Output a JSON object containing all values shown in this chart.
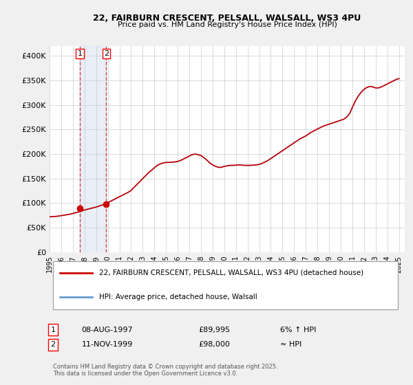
{
  "title_line1": "22, FAIRBURN CRESCENT, PELSALL, WALSALL, WS3 4PU",
  "title_line2": "Price paid vs. HM Land Registry's House Price Index (HPI)",
  "ylabel": "",
  "xlim_start": 1995.0,
  "xlim_end": 2025.5,
  "ylim_min": 0,
  "ylim_max": 420000,
  "yticks": [
    0,
    50000,
    100000,
    150000,
    200000,
    250000,
    300000,
    350000,
    400000
  ],
  "ytick_labels": [
    "£0",
    "£50K",
    "£100K",
    "£150K",
    "£200K",
    "£250K",
    "£300K",
    "£350K",
    "£400K"
  ],
  "xtick_years": [
    1995,
    1996,
    1997,
    1998,
    1999,
    2000,
    2001,
    2002,
    2003,
    2004,
    2005,
    2006,
    2007,
    2008,
    2009,
    2010,
    2011,
    2012,
    2013,
    2014,
    2015,
    2016,
    2017,
    2018,
    2019,
    2020,
    2021,
    2022,
    2023,
    2024,
    2025
  ],
  "hpi_color": "#6699cc",
  "price_color": "#cc0000",
  "background_color": "#f0f0f0",
  "plot_bg_color": "#ffffff",
  "grid_color": "#cccccc",
  "purchase1_year": 1997.6,
  "purchase1_price": 89995,
  "purchase2_year": 1999.87,
  "purchase2_price": 98000,
  "legend_label1": "22, FAIRBURN CRESCENT, PELSALL, WALSALL, WS3 4PU (detached house)",
  "legend_label2": "HPI: Average price, detached house, Walsall",
  "table_row1": [
    "1",
    "08-AUG-1997",
    "£89,995",
    "6% ↑ HPI"
  ],
  "table_row2": [
    "2",
    "11-NOV-1999",
    "£98,000",
    "≈ HPI"
  ],
  "footnote": "Contains HM Land Registry data © Crown copyright and database right 2025.\nThis data is licensed under the Open Government Licence v3.0.",
  "hpi_data_x": [
    1995.0,
    1995.25,
    1995.5,
    1995.75,
    1996.0,
    1996.25,
    1996.5,
    1996.75,
    1997.0,
    1997.25,
    1997.5,
    1997.75,
    1998.0,
    1998.25,
    1998.5,
    1998.75,
    1999.0,
    1999.25,
    1999.5,
    1999.75,
    2000.0,
    2000.25,
    2000.5,
    2000.75,
    2001.0,
    2001.25,
    2001.5,
    2001.75,
    2002.0,
    2002.25,
    2002.5,
    2002.75,
    2003.0,
    2003.25,
    2003.5,
    2003.75,
    2004.0,
    2004.25,
    2004.5,
    2004.75,
    2005.0,
    2005.25,
    2005.5,
    2005.75,
    2006.0,
    2006.25,
    2006.5,
    2006.75,
    2007.0,
    2007.25,
    2007.5,
    2007.75,
    2008.0,
    2008.25,
    2008.5,
    2008.75,
    2009.0,
    2009.25,
    2009.5,
    2009.75,
    2010.0,
    2010.25,
    2010.5,
    2010.75,
    2011.0,
    2011.25,
    2011.5,
    2011.75,
    2012.0,
    2012.25,
    2012.5,
    2012.75,
    2013.0,
    2013.25,
    2013.5,
    2013.75,
    2014.0,
    2014.25,
    2014.5,
    2014.75,
    2015.0,
    2015.25,
    2015.5,
    2015.75,
    2016.0,
    2016.25,
    2016.5,
    2016.75,
    2017.0,
    2017.25,
    2017.5,
    2017.75,
    2018.0,
    2018.25,
    2018.5,
    2018.75,
    2019.0,
    2019.25,
    2019.5,
    2019.75,
    2020.0,
    2020.25,
    2020.5,
    2020.75,
    2021.0,
    2021.25,
    2021.5,
    2021.75,
    2022.0,
    2022.25,
    2022.5,
    2022.75,
    2023.0,
    2023.25,
    2023.5,
    2023.75,
    2024.0,
    2024.25,
    2024.5,
    2024.75,
    2025.0
  ],
  "hpi_data_y": [
    72000,
    72500,
    73000,
    73500,
    74500,
    75500,
    76500,
    77500,
    79000,
    80500,
    82000,
    84000,
    86000,
    87500,
    89000,
    90500,
    92000,
    94000,
    96000,
    98000,
    101000,
    104000,
    107000,
    110000,
    113000,
    116000,
    119000,
    122000,
    126000,
    132000,
    138000,
    144000,
    150000,
    156000,
    162000,
    167000,
    172000,
    177000,
    180000,
    182000,
    183000,
    183000,
    183500,
    184000,
    185000,
    187000,
    190000,
    193000,
    196000,
    199000,
    200000,
    199000,
    197000,
    193000,
    188000,
    182000,
    178000,
    175000,
    173000,
    173000,
    175000,
    176000,
    177000,
    177000,
    177500,
    178000,
    177500,
    177000,
    177000,
    177000,
    177500,
    178000,
    179000,
    181000,
    184000,
    187000,
    191000,
    195000,
    199000,
    203000,
    207000,
    211000,
    215000,
    219000,
    223000,
    227000,
    231000,
    234000,
    237000,
    241000,
    245000,
    248000,
    251000,
    254000,
    257000,
    259000,
    261000,
    263000,
    265000,
    267000,
    269000,
    271000,
    275000,
    282000,
    295000,
    308000,
    318000,
    326000,
    332000,
    336000,
    338000,
    337000,
    335000,
    335000,
    337000,
    340000,
    343000,
    346000,
    349000,
    352000,
    354000
  ],
  "price_data_x": [
    1995.0,
    1995.25,
    1995.5,
    1995.75,
    1996.0,
    1996.25,
    1996.5,
    1996.75,
    1997.0,
    1997.25,
    1997.5,
    1997.75,
    1998.0,
    1998.25,
    1998.5,
    1998.75,
    1999.0,
    1999.25,
    1999.5,
    1999.75,
    2000.0,
    2000.25,
    2000.5,
    2000.75,
    2001.0,
    2001.25,
    2001.5,
    2001.75,
    2002.0,
    2002.25,
    2002.5,
    2002.75,
    2003.0,
    2003.25,
    2003.5,
    2003.75,
    2004.0,
    2004.25,
    2004.5,
    2004.75,
    2005.0,
    2005.25,
    2005.5,
    2005.75,
    2006.0,
    2006.25,
    2006.5,
    2006.75,
    2007.0,
    2007.25,
    2007.5,
    2007.75,
    2008.0,
    2008.25,
    2008.5,
    2008.75,
    2009.0,
    2009.25,
    2009.5,
    2009.75,
    2010.0,
    2010.25,
    2010.5,
    2010.75,
    2011.0,
    2011.25,
    2011.5,
    2011.75,
    2012.0,
    2012.25,
    2012.5,
    2012.75,
    2013.0,
    2013.25,
    2013.5,
    2013.75,
    2014.0,
    2014.25,
    2014.5,
    2014.75,
    2015.0,
    2015.25,
    2015.5,
    2015.75,
    2016.0,
    2016.25,
    2016.5,
    2016.75,
    2017.0,
    2017.25,
    2017.5,
    2017.75,
    2018.0,
    2018.25,
    2018.5,
    2018.75,
    2019.0,
    2019.25,
    2019.5,
    2019.75,
    2020.0,
    2020.25,
    2020.5,
    2020.75,
    2021.0,
    2021.25,
    2021.5,
    2021.75,
    2022.0,
    2022.25,
    2022.5,
    2022.75,
    2023.0,
    2023.25,
    2023.5,
    2023.75,
    2024.0,
    2024.25,
    2024.5,
    2024.75,
    2025.0
  ],
  "price_data_y": [
    72000,
    72500,
    73000,
    73500,
    74500,
    75500,
    76500,
    77500,
    79000,
    80500,
    82000,
    84000,
    86000,
    87500,
    89000,
    90500,
    92000,
    94000,
    96000,
    98000,
    101000,
    104000,
    107000,
    110000,
    113000,
    116000,
    119000,
    122000,
    126000,
    132000,
    138000,
    144000,
    150000,
    156000,
    162000,
    167000,
    172000,
    177000,
    180000,
    182000,
    183000,
    183000,
    183500,
    184000,
    185000,
    187000,
    190000,
    193000,
    196000,
    199000,
    200000,
    199000,
    197000,
    193000,
    188000,
    182000,
    178000,
    175000,
    173000,
    173000,
    175000,
    176000,
    177000,
    177000,
    177500,
    178000,
    177500,
    177000,
    177000,
    177000,
    177500,
    178000,
    179000,
    181000,
    184000,
    187000,
    191000,
    195000,
    199000,
    203000,
    207000,
    211000,
    215000,
    219000,
    223000,
    227000,
    231000,
    234000,
    237000,
    241000,
    245000,
    248000,
    251000,
    254000,
    257000,
    259000,
    261000,
    263000,
    265000,
    267000,
    269000,
    271000,
    275000,
    282000,
    295000,
    308000,
    318000,
    326000,
    332000,
    336000,
    338000,
    337000,
    335000,
    335000,
    337000,
    340000,
    343000,
    346000,
    349000,
    352000,
    354000
  ]
}
